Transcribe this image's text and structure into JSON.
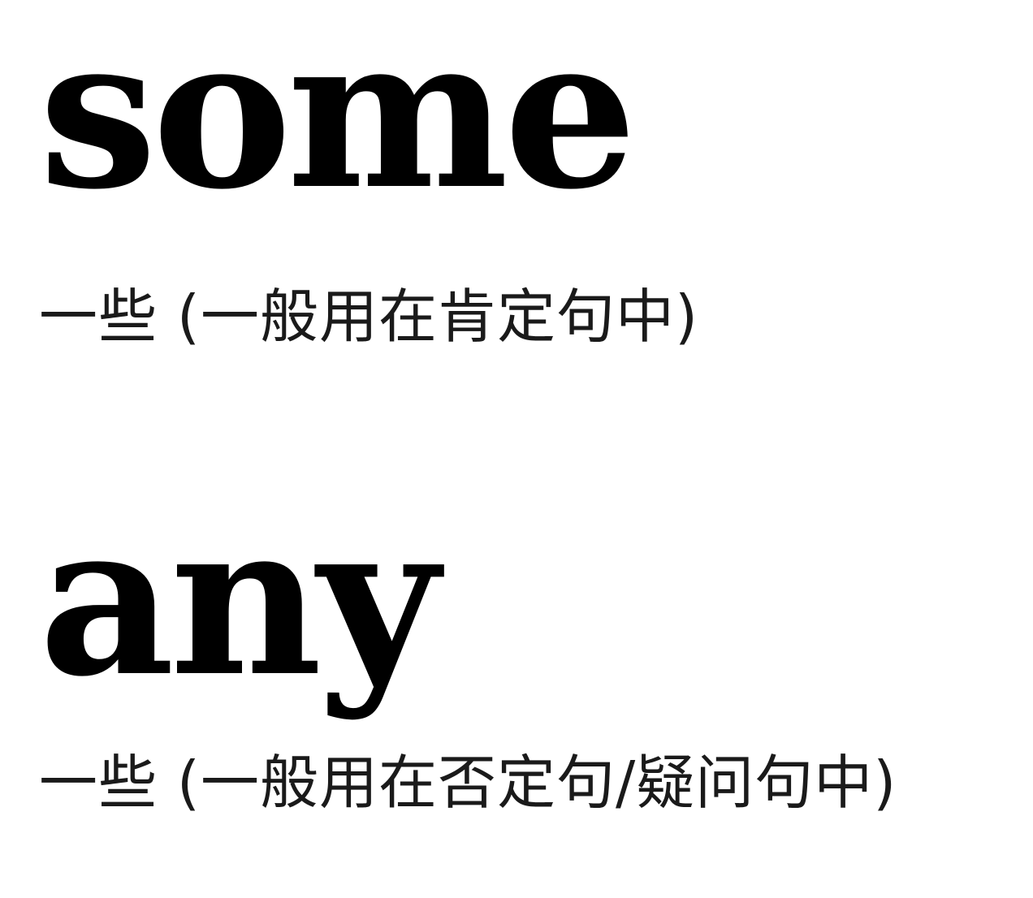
{
  "entries": [
    {
      "word": "some",
      "meaning": "一些 (一般用在肯定句中)"
    },
    {
      "word": "any",
      "meaning": "一些 (一般用在否定句/疑问句中)"
    }
  ],
  "colors": {
    "background": "#ffffff",
    "word": "#000000",
    "meaning": "#1a1a1a"
  }
}
